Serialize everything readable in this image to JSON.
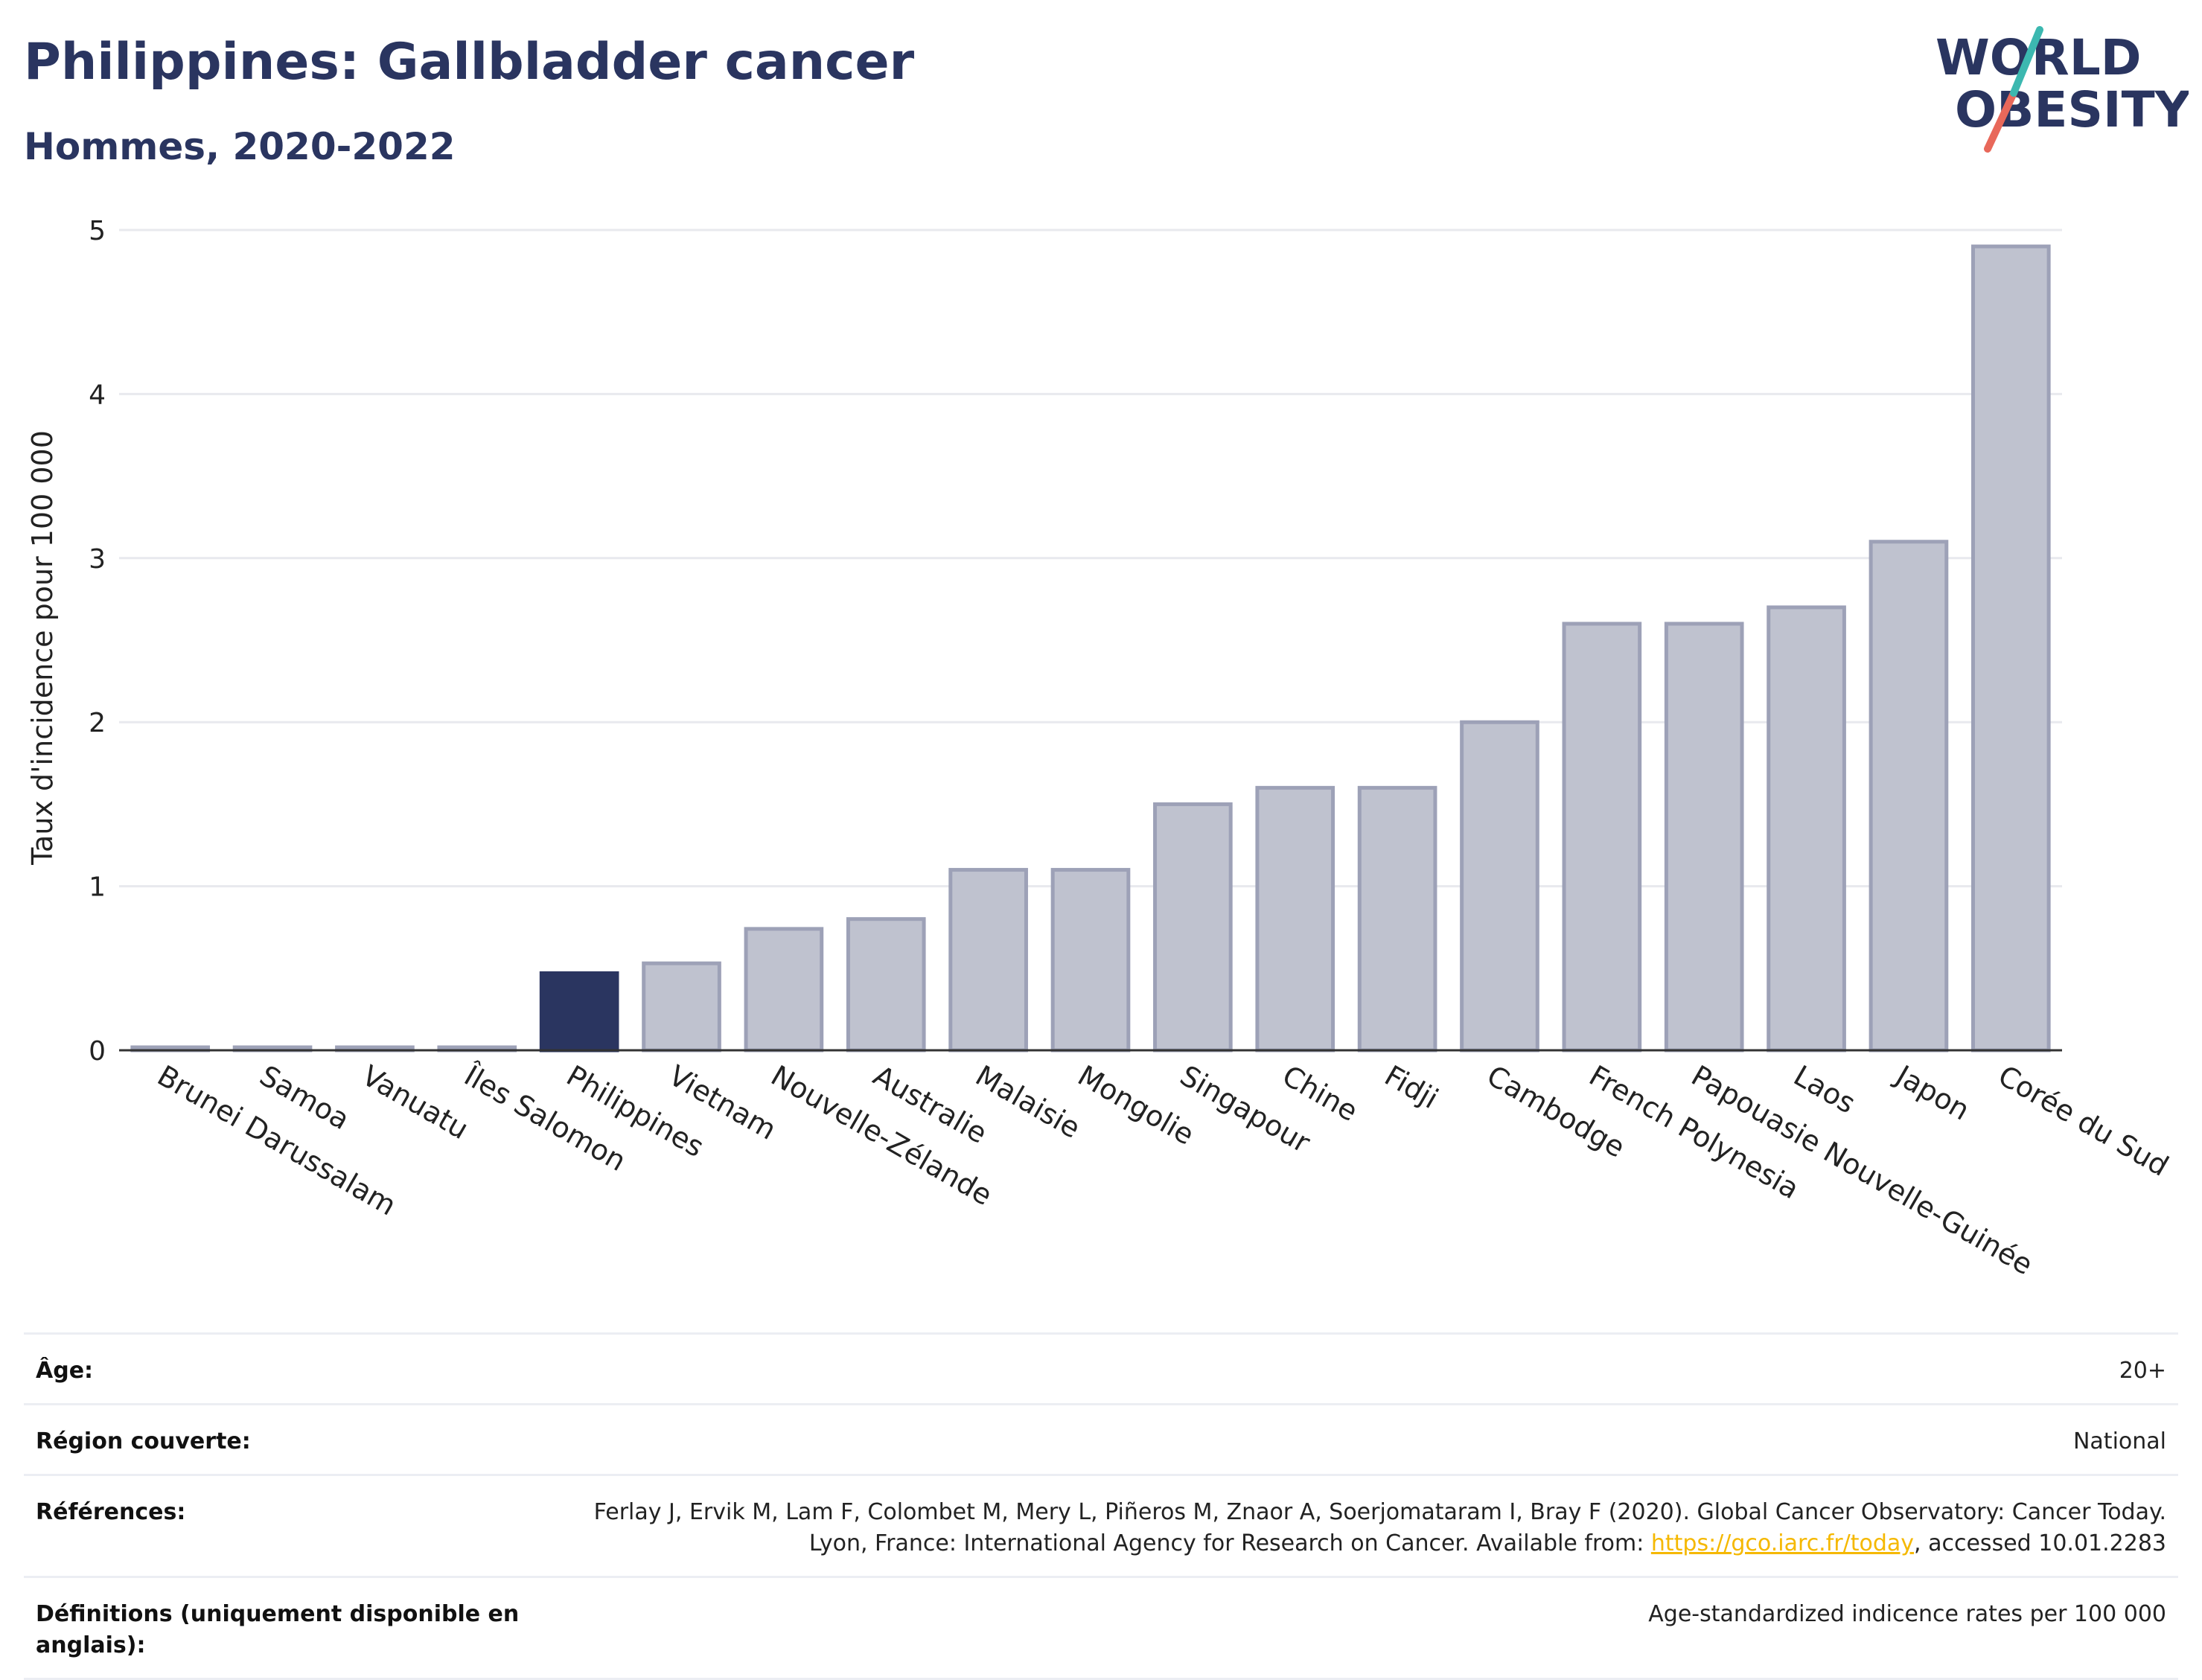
{
  "header": {
    "title": "Philippines: Gallbladder cancer",
    "subtitle": "Hommes, 2020-2022"
  },
  "logo": {
    "line1": "WORLD",
    "line2": "OBESITY",
    "icon": "world-obesity-logo"
  },
  "colors": {
    "highlight": "#2a3560",
    "bar_fill": "#bfc2cf",
    "bar_stroke": "#9da1b7",
    "grid": "#e8e9ee",
    "axis": "#333333"
  },
  "chart_data": {
    "type": "bar",
    "ylabel": "Taux d'incidence pour 100 000",
    "ylim": [
      0,
      5
    ],
    "yticks": [
      0,
      1,
      2,
      3,
      4,
      5
    ],
    "grid": true,
    "highlight_category": "Philippines",
    "categories": [
      "Brunei Darussalam",
      "Samoa",
      "Vanuatu",
      "Îles Salomon",
      "Philippines",
      "Vietnam",
      "Nouvelle-Zélande",
      "Australie",
      "Malaisie",
      "Mongolie",
      "Singapour",
      "Chine",
      "Fidji",
      "Cambodge",
      "French Polynesia",
      "Papouasie Nouvelle-Guinée",
      "Laos",
      "Japon",
      "Corée du Sud"
    ],
    "values": [
      0.01,
      0.01,
      0.01,
      0.01,
      0.47,
      0.53,
      0.74,
      0.8,
      1.1,
      1.1,
      1.5,
      1.6,
      1.6,
      2.0,
      2.6,
      2.6,
      2.7,
      3.1,
      4.9
    ]
  },
  "meta": {
    "age_label": "Âge:",
    "age_value": "20+",
    "region_label": "Région couverte:",
    "region_value": "National",
    "refs_label": "Références:",
    "refs_text1": "Ferlay J, Ervik M, Lam F, Colombet M, Mery L, Piñeros M, Znaor A, Soerjomataram I, Bray F (2020). Global Cancer Observatory: Cancer Today. Lyon, France: International Agency for Research on Cancer. Available from: ",
    "refs_link": "https://gco.iarc.fr/today",
    "refs_text2": ", accessed 10.01.2283",
    "defs_label": "Définitions (uniquement disponible en anglais):",
    "defs_value": "Age-standardized indicence rates per 100 000"
  }
}
